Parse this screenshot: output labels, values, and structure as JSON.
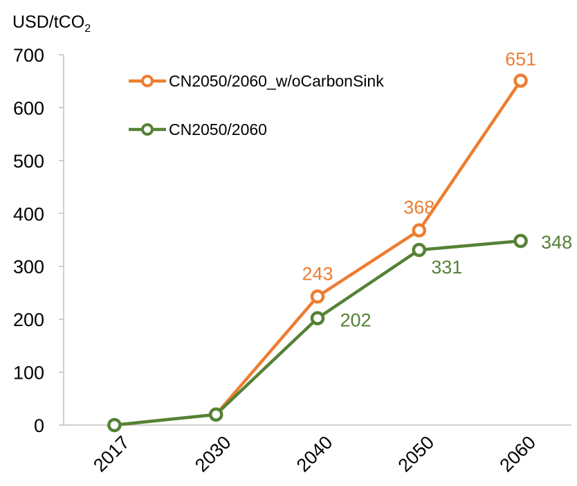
{
  "chart_data": {
    "type": "line",
    "ylabel_main": "USD/tCO",
    "ylabel_sub": "2",
    "categories": [
      "2017",
      "2030",
      "2040",
      "2050",
      "2060"
    ],
    "ylim": [
      0,
      700
    ],
    "yticks": [
      "0",
      "100",
      "200",
      "300",
      "400",
      "500",
      "600",
      "700"
    ],
    "grid": false,
    "legend_position": "top-left",
    "series": [
      {
        "name": "CN2050/2060_w/oCarbonSink",
        "color": "#ed7d31",
        "values": [
          0,
          20,
          243,
          368,
          651
        ],
        "labels": [
          "",
          "",
          "243",
          "368",
          "651"
        ]
      },
      {
        "name": "CN2050/2060",
        "color": "#548235",
        "values": [
          0,
          20,
          202,
          331,
          348
        ],
        "labels": [
          "",
          "",
          "202",
          "331",
          "348"
        ]
      }
    ]
  }
}
